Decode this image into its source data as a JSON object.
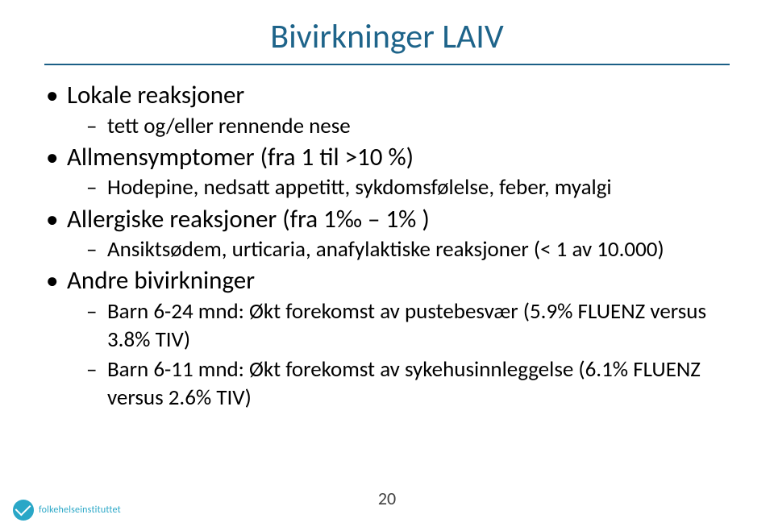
{
  "colors": {
    "title": "#1e648a",
    "rule": "#1b5f86",
    "bullet": "#000000",
    "body": "#000000",
    "pagenum": "#404040",
    "logo_bg": "#2aa7c7",
    "logo_tick": "#ffffff",
    "logo_text": "#2aa7c7"
  },
  "title": "Bivirkninger LAIV",
  "bullets": [
    {
      "text": "Lokale reaksjoner",
      "sub": [
        "tett og/eller rennende nese"
      ]
    },
    {
      "text": "Allmensymptomer (fra 1 til >10 %)",
      "sub": [
        "Hodepine, nedsatt appetitt, sykdomsfølelse, feber, myalgi"
      ]
    },
    {
      "text": "Allergiske reaksjoner (fra 1‰ – 1% )",
      "sub": [
        "Ansiktsødem, urticaria, anafylaktiske reaksjoner (< 1 av 10.000)"
      ]
    },
    {
      "text": "Andre bivirkninger",
      "sub": [
        "Barn 6-24 mnd: Økt forekomst av pustebesvær (5.9% FLUENZ versus 3.8% TIV)",
        "Barn 6-11 mnd: Økt forekomst av sykehusinnleggelse (6.1% FLUENZ versus 2.6% TIV)"
      ]
    }
  ],
  "page_number": "20",
  "logo_text": "folkehelseinstituttet"
}
